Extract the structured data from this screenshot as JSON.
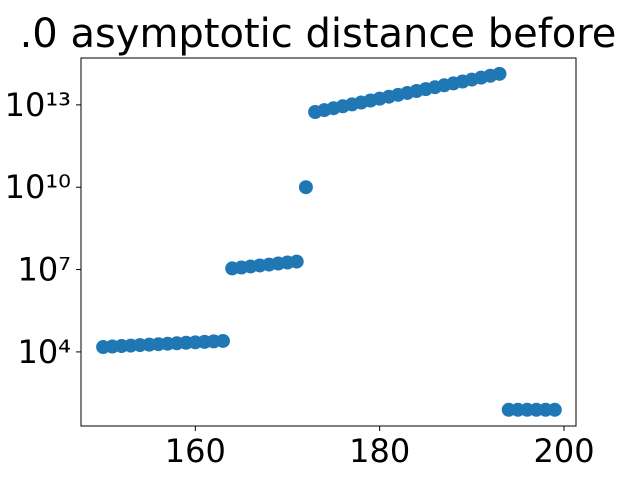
{
  "chart_data": {
    "type": "scatter",
    "title": ".0 asymptotic distance before",
    "x": [
      150,
      151,
      152,
      153,
      154,
      155,
      156,
      157,
      158,
      159,
      160,
      161,
      162,
      163,
      164,
      165,
      166,
      167,
      168,
      169,
      170,
      171,
      172,
      173,
      174,
      175,
      176,
      177,
      178,
      179,
      180,
      181,
      182,
      183,
      184,
      185,
      186,
      187,
      188,
      189,
      190,
      191,
      192,
      193,
      194,
      195,
      196,
      197,
      198,
      199
    ],
    "values": [
      15100,
      15700,
      16400,
      17000,
      17700,
      18400,
      19100,
      19900,
      20700,
      21500,
      22300,
      23200,
      24200,
      25100,
      11000000,
      11900000,
      13000000,
      14100000,
      15200000,
      16600000,
      18000000,
      19500000,
      10000000000,
      5500000000000,
      6450000000000,
      7570000000000,
      8890000000000,
      10400000000000,
      12200000000000,
      14400000000000,
      16900000000000,
      19800000000000,
      23200000000000,
      27200000000000,
      32000000000000,
      37500000000000,
      44000000000000,
      51600000000000,
      60600000000000,
      71100000000000,
      83500000000000,
      97900000000000,
      115000000000000,
      135000000000000,
      78,
      78,
      78,
      78,
      78,
      78
    ],
    "color": "#1f77b4",
    "xlim": [
      147.6,
      201.3
    ],
    "xticks": [
      160,
      180,
      200
    ],
    "ylim": [
      20,
      510000000000000
    ],
    "log_y": true,
    "yticks": [
      {
        "value": 10000,
        "label": "10⁴"
      },
      {
        "value": 10000000,
        "label": "10⁷"
      },
      {
        "value": 10000000000,
        "label": "10¹⁰"
      },
      {
        "value": 10000000000000,
        "label": "10¹³"
      }
    ],
    "grid": false
  }
}
